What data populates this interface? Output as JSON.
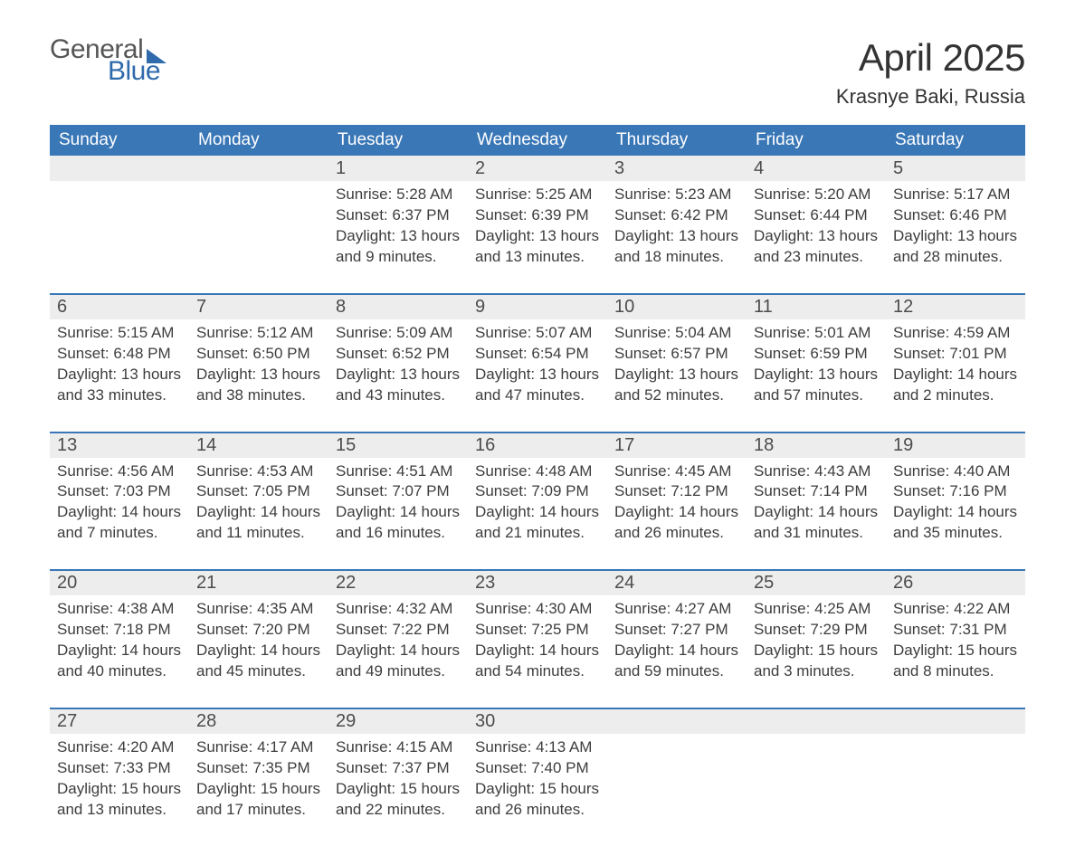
{
  "brand": {
    "word1": "General",
    "word2": "Blue",
    "accent_color": "#2f6bac",
    "text_color": "#565656"
  },
  "title": {
    "month": "April 2025",
    "location": "Krasnye Baki, Russia"
  },
  "calendar": {
    "header_bg": "#3a77b7",
    "header_fg": "#ffffff",
    "daynum_bg": "#ededed",
    "row_border": "#3a77b7",
    "day_names": [
      "Sunday",
      "Monday",
      "Tuesday",
      "Wednesday",
      "Thursday",
      "Friday",
      "Saturday"
    ],
    "weeks": [
      [
        null,
        null,
        {
          "n": "1",
          "sunrise": "5:28 AM",
          "sunset": "6:37 PM",
          "dl": "13 hours and 9 minutes."
        },
        {
          "n": "2",
          "sunrise": "5:25 AM",
          "sunset": "6:39 PM",
          "dl": "13 hours and 13 minutes."
        },
        {
          "n": "3",
          "sunrise": "5:23 AM",
          "sunset": "6:42 PM",
          "dl": "13 hours and 18 minutes."
        },
        {
          "n": "4",
          "sunrise": "5:20 AM",
          "sunset": "6:44 PM",
          "dl": "13 hours and 23 minutes."
        },
        {
          "n": "5",
          "sunrise": "5:17 AM",
          "sunset": "6:46 PM",
          "dl": "13 hours and 28 minutes."
        }
      ],
      [
        {
          "n": "6",
          "sunrise": "5:15 AM",
          "sunset": "6:48 PM",
          "dl": "13 hours and 33 minutes."
        },
        {
          "n": "7",
          "sunrise": "5:12 AM",
          "sunset": "6:50 PM",
          "dl": "13 hours and 38 minutes."
        },
        {
          "n": "8",
          "sunrise": "5:09 AM",
          "sunset": "6:52 PM",
          "dl": "13 hours and 43 minutes."
        },
        {
          "n": "9",
          "sunrise": "5:07 AM",
          "sunset": "6:54 PM",
          "dl": "13 hours and 47 minutes."
        },
        {
          "n": "10",
          "sunrise": "5:04 AM",
          "sunset": "6:57 PM",
          "dl": "13 hours and 52 minutes."
        },
        {
          "n": "11",
          "sunrise": "5:01 AM",
          "sunset": "6:59 PM",
          "dl": "13 hours and 57 minutes."
        },
        {
          "n": "12",
          "sunrise": "4:59 AM",
          "sunset": "7:01 PM",
          "dl": "14 hours and 2 minutes."
        }
      ],
      [
        {
          "n": "13",
          "sunrise": "4:56 AM",
          "sunset": "7:03 PM",
          "dl": "14 hours and 7 minutes."
        },
        {
          "n": "14",
          "sunrise": "4:53 AM",
          "sunset": "7:05 PM",
          "dl": "14 hours and 11 minutes."
        },
        {
          "n": "15",
          "sunrise": "4:51 AM",
          "sunset": "7:07 PM",
          "dl": "14 hours and 16 minutes."
        },
        {
          "n": "16",
          "sunrise": "4:48 AM",
          "sunset": "7:09 PM",
          "dl": "14 hours and 21 minutes."
        },
        {
          "n": "17",
          "sunrise": "4:45 AM",
          "sunset": "7:12 PM",
          "dl": "14 hours and 26 minutes."
        },
        {
          "n": "18",
          "sunrise": "4:43 AM",
          "sunset": "7:14 PM",
          "dl": "14 hours and 31 minutes."
        },
        {
          "n": "19",
          "sunrise": "4:40 AM",
          "sunset": "7:16 PM",
          "dl": "14 hours and 35 minutes."
        }
      ],
      [
        {
          "n": "20",
          "sunrise": "4:38 AM",
          "sunset": "7:18 PM",
          "dl": "14 hours and 40 minutes."
        },
        {
          "n": "21",
          "sunrise": "4:35 AM",
          "sunset": "7:20 PM",
          "dl": "14 hours and 45 minutes."
        },
        {
          "n": "22",
          "sunrise": "4:32 AM",
          "sunset": "7:22 PM",
          "dl": "14 hours and 49 minutes."
        },
        {
          "n": "23",
          "sunrise": "4:30 AM",
          "sunset": "7:25 PM",
          "dl": "14 hours and 54 minutes."
        },
        {
          "n": "24",
          "sunrise": "4:27 AM",
          "sunset": "7:27 PM",
          "dl": "14 hours and 59 minutes."
        },
        {
          "n": "25",
          "sunrise": "4:25 AM",
          "sunset": "7:29 PM",
          "dl": "15 hours and 3 minutes."
        },
        {
          "n": "26",
          "sunrise": "4:22 AM",
          "sunset": "7:31 PM",
          "dl": "15 hours and 8 minutes."
        }
      ],
      [
        {
          "n": "27",
          "sunrise": "4:20 AM",
          "sunset": "7:33 PM",
          "dl": "15 hours and 13 minutes."
        },
        {
          "n": "28",
          "sunrise": "4:17 AM",
          "sunset": "7:35 PM",
          "dl": "15 hours and 17 minutes."
        },
        {
          "n": "29",
          "sunrise": "4:15 AM",
          "sunset": "7:37 PM",
          "dl": "15 hours and 22 minutes."
        },
        {
          "n": "30",
          "sunrise": "4:13 AM",
          "sunset": "7:40 PM",
          "dl": "15 hours and 26 minutes."
        },
        null,
        null,
        null
      ]
    ],
    "labels": {
      "sunrise": "Sunrise: ",
      "sunset": "Sunset: ",
      "daylight": "Daylight: "
    }
  }
}
